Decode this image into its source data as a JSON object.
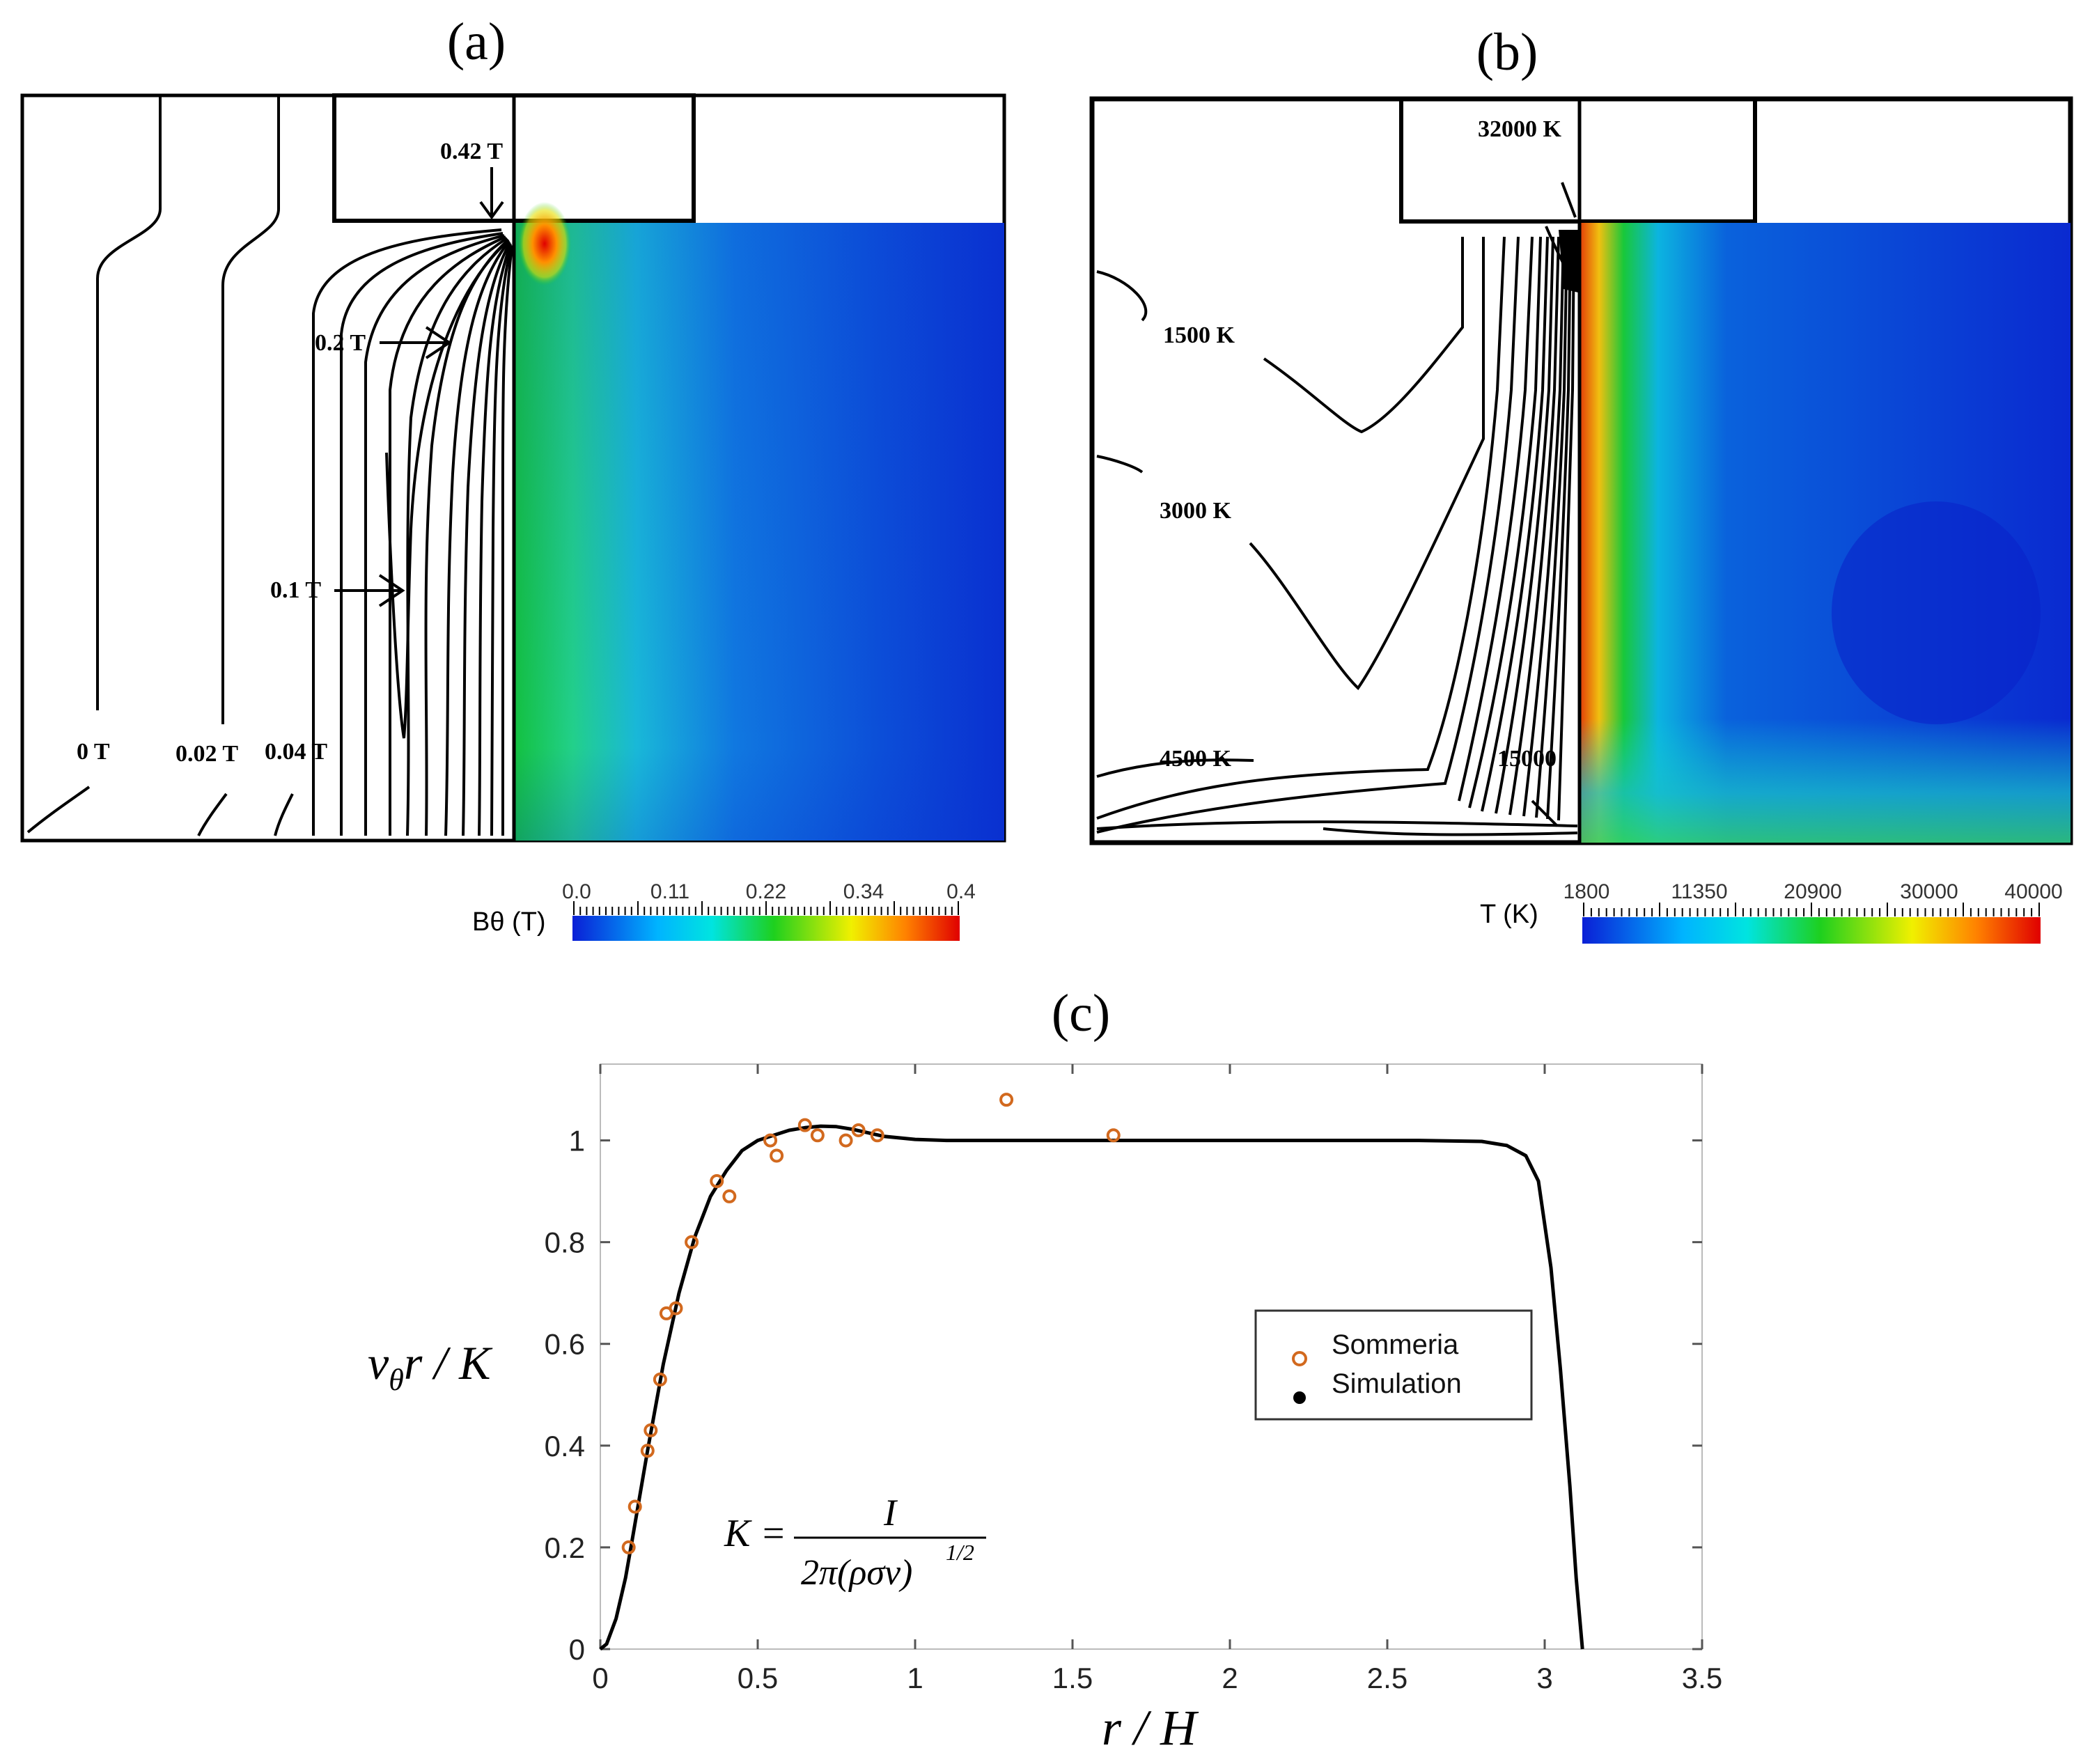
{
  "panel_a": {
    "letter": "(a)",
    "contour_labels": [
      "0.42 T",
      "0.2 T",
      "0.1 T",
      "0 T",
      "0.02 T",
      "0.04 T"
    ],
    "colorbar": {
      "title": "Bθ (T)",
      "ticks": [
        "0.0",
        "0.11",
        "0.22",
        "0.34",
        "0.4"
      ],
      "colors": [
        "#0a1fd6",
        "#00d8ff",
        "#1ed01e",
        "#f0f000",
        "#ff7800",
        "#e00000"
      ]
    }
  },
  "panel_b": {
    "letter": "(b)",
    "contour_labels": [
      "32000 K",
      "1500 K",
      "3000 K",
      "4500 K",
      "15000"
    ],
    "colorbar": {
      "title": "T (K)",
      "ticks": [
        "1800",
        "11350",
        "20900",
        "30000",
        "40000"
      ],
      "colors": [
        "#0a1fd6",
        "#00d8ff",
        "#1ed01e",
        "#f0f000",
        "#ff7800",
        "#e00000"
      ]
    }
  },
  "panel_c": {
    "letter": "(c)",
    "formula": {
      "lhs": "K =",
      "numerator": "I",
      "denominator": "2π(ρσν)",
      "exponent": "1/2"
    }
  },
  "chart_data": {
    "type": "scatter",
    "title": "",
    "xlabel": "r / H",
    "ylabel": "vθr / K",
    "xlim": [
      0,
      3.5
    ],
    "ylim": [
      0,
      1.15
    ],
    "xticks": [
      "0",
      "0.5",
      "1",
      "1.5",
      "2",
      "2.5",
      "3",
      "3.5"
    ],
    "yticks": [
      "0",
      "0.2",
      "0.4",
      "0.6",
      "0.8",
      "1"
    ],
    "grid": false,
    "legend_position": "center-right",
    "series": [
      {
        "name": "Sommeria",
        "type": "scatter",
        "marker": "open-circle",
        "color": "#d2691e",
        "x": [
          0.09,
          0.11,
          0.15,
          0.16,
          0.19,
          0.21,
          0.24,
          0.29,
          0.37,
          0.41,
          0.54,
          0.56,
          0.65,
          0.69,
          0.78,
          0.82,
          0.88,
          1.29,
          1.63
        ],
        "y": [
          0.2,
          0.28,
          0.39,
          0.43,
          0.53,
          0.66,
          0.67,
          0.8,
          0.92,
          0.89,
          1.0,
          0.97,
          1.03,
          1.01,
          1.0,
          1.02,
          1.01,
          1.08,
          1.01
        ]
      },
      {
        "name": "Simulation",
        "type": "line",
        "color": "#000000",
        "x": [
          0,
          0.02,
          0.05,
          0.08,
          0.1,
          0.15,
          0.2,
          0.25,
          0.3,
          0.35,
          0.4,
          0.45,
          0.5,
          0.55,
          0.6,
          0.65,
          0.7,
          0.75,
          0.8,
          0.85,
          0.9,
          1.0,
          1.1,
          1.2,
          1.4,
          1.6,
          1.8,
          2.0,
          2.2,
          2.4,
          2.6,
          2.8,
          2.88,
          2.94,
          2.98,
          3.02,
          3.05,
          3.08,
          3.1,
          3.12
        ],
        "y": [
          0,
          0.01,
          0.06,
          0.14,
          0.21,
          0.39,
          0.56,
          0.7,
          0.81,
          0.89,
          0.94,
          0.98,
          1.0,
          1.01,
          1.02,
          1.025,
          1.028,
          1.027,
          1.022,
          1.015,
          1.008,
          1.002,
          1.0,
          1.0,
          1.0,
          1.0,
          1.0,
          1.0,
          1.0,
          1.0,
          1.0,
          0.998,
          0.99,
          0.97,
          0.92,
          0.75,
          0.55,
          0.32,
          0.14,
          0.0
        ]
      }
    ]
  }
}
